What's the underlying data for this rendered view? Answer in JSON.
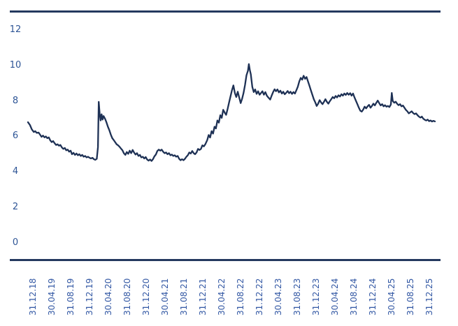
{
  "page": {
    "background": "#ffffff"
  },
  "chart_data": {
    "type": "line",
    "title": "",
    "xlabel": "",
    "ylabel": "",
    "legend": "none",
    "grid": false,
    "y_ticks": [
      0,
      2,
      4,
      6,
      8,
      10,
      12
    ],
    "ylim": [
      0,
      13
    ],
    "x_tick_labels": [
      "31.12.18",
      "30.04.19",
      "31.08.19",
      "31.12.19",
      "30.04.20",
      "31.08.20",
      "31.12.20",
      "30.04.21",
      "31.08.21",
      "31.12.21",
      "30.04.22",
      "31.08.22",
      "31.12.22",
      "30.04.23",
      "31.08.23",
      "31.12.23",
      "30.04.24",
      "31.08.24",
      "31.12.24",
      "30.04.25",
      "31.08.25",
      "31.12.25"
    ],
    "x_unit": "months_after_31.12.18",
    "x_range_months": [
      0,
      84
    ],
    "line_color": "#1E3155",
    "axis_label_color": "#2E5596",
    "border_color": "#24395F",
    "points": [
      [
        0,
        6.8
      ],
      [
        0.4,
        6.65
      ],
      [
        0.8,
        6.4
      ],
      [
        1.2,
        6.25
      ],
      [
        1.5,
        6.3
      ],
      [
        1.8,
        6.2
      ],
      [
        2.2,
        6.22
      ],
      [
        2.5,
        6.1
      ],
      [
        2.8,
        5.98
      ],
      [
        3.1,
        6.05
      ],
      [
        3.4,
        5.95
      ],
      [
        3.7,
        6.0
      ],
      [
        4.0,
        5.9
      ],
      [
        4.3,
        5.95
      ],
      [
        4.6,
        5.78
      ],
      [
        4.9,
        5.68
      ],
      [
        5.2,
        5.74
      ],
      [
        5.5,
        5.62
      ],
      [
        5.8,
        5.52
      ],
      [
        6.1,
        5.56
      ],
      [
        6.4,
        5.48
      ],
      [
        6.7,
        5.52
      ],
      [
        7.0,
        5.38
      ],
      [
        7.3,
        5.3
      ],
      [
        7.6,
        5.35
      ],
      [
        7.9,
        5.22
      ],
      [
        8.2,
        5.26
      ],
      [
        8.5,
        5.14
      ],
      [
        8.8,
        5.2
      ],
      [
        9.1,
        5.0
      ],
      [
        9.4,
        5.08
      ],
      [
        9.7,
        4.96
      ],
      [
        10.0,
        5.04
      ],
      [
        10.3,
        4.94
      ],
      [
        10.6,
        5.0
      ],
      [
        10.9,
        4.9
      ],
      [
        11.2,
        4.96
      ],
      [
        11.5,
        4.86
      ],
      [
        11.8,
        4.9
      ],
      [
        12.1,
        4.82
      ],
      [
        12.4,
        4.86
      ],
      [
        12.7,
        4.8
      ],
      [
        13.0,
        4.76
      ],
      [
        13.3,
        4.8
      ],
      [
        13.6,
        4.72
      ],
      [
        13.9,
        4.68
      ],
      [
        14.2,
        4.74
      ],
      [
        14.45,
        5.4
      ],
      [
        14.6,
        7.95
      ],
      [
        14.8,
        7.3
      ],
      [
        15.0,
        6.9
      ],
      [
        15.2,
        7.25
      ],
      [
        15.4,
        6.95
      ],
      [
        15.6,
        7.15
      ],
      [
        15.9,
        7.0
      ],
      [
        16.2,
        6.8
      ],
      [
        16.5,
        6.55
      ],
      [
        16.8,
        6.35
      ],
      [
        17.1,
        6.1
      ],
      [
        17.4,
        5.9
      ],
      [
        17.7,
        5.8
      ],
      [
        18.0,
        5.68
      ],
      [
        18.3,
        5.56
      ],
      [
        18.6,
        5.5
      ],
      [
        18.9,
        5.42
      ],
      [
        19.2,
        5.32
      ],
      [
        19.5,
        5.22
      ],
      [
        19.8,
        5.05
      ],
      [
        20.1,
        4.96
      ],
      [
        20.4,
        5.12
      ],
      [
        20.7,
        5.02
      ],
      [
        21.0,
        5.2
      ],
      [
        21.3,
        5.06
      ],
      [
        21.6,
        5.24
      ],
      [
        21.9,
        5.1
      ],
      [
        22.2,
        4.98
      ],
      [
        22.5,
        5.06
      ],
      [
        22.8,
        4.9
      ],
      [
        23.1,
        4.96
      ],
      [
        23.4,
        4.82
      ],
      [
        23.7,
        4.86
      ],
      [
        24.0,
        4.76
      ],
      [
        24.3,
        4.84
      ],
      [
        24.6,
        4.7
      ],
      [
        24.9,
        4.64
      ],
      [
        25.2,
        4.7
      ],
      [
        25.5,
        4.62
      ],
      [
        25.8,
        4.72
      ],
      [
        26.1,
        4.88
      ],
      [
        26.4,
        4.98
      ],
      [
        26.7,
        5.18
      ],
      [
        27.0,
        5.26
      ],
      [
        27.3,
        5.2
      ],
      [
        27.6,
        5.26
      ],
      [
        27.9,
        5.14
      ],
      [
        28.2,
        5.06
      ],
      [
        28.5,
        5.1
      ],
      [
        28.8,
        5.0
      ],
      [
        29.1,
        5.06
      ],
      [
        29.4,
        4.94
      ],
      [
        29.7,
        4.98
      ],
      [
        30.0,
        4.9
      ],
      [
        30.3,
        4.94
      ],
      [
        30.6,
        4.86
      ],
      [
        30.9,
        4.9
      ],
      [
        31.2,
        4.74
      ],
      [
        31.5,
        4.66
      ],
      [
        31.8,
        4.72
      ],
      [
        32.1,
        4.66
      ],
      [
        32.4,
        4.74
      ],
      [
        32.7,
        4.86
      ],
      [
        33.0,
        4.94
      ],
      [
        33.3,
        5.1
      ],
      [
        33.6,
        5.04
      ],
      [
        33.9,
        5.18
      ],
      [
        34.2,
        5.06
      ],
      [
        34.5,
        5.0
      ],
      [
        34.8,
        5.1
      ],
      [
        35.1,
        5.3
      ],
      [
        35.4,
        5.24
      ],
      [
        35.7,
        5.3
      ],
      [
        36.0,
        5.5
      ],
      [
        36.3,
        5.44
      ],
      [
        36.6,
        5.56
      ],
      [
        37.0,
        5.8
      ],
      [
        37.3,
        6.08
      ],
      [
        37.6,
        5.94
      ],
      [
        37.9,
        6.3
      ],
      [
        38.2,
        6.16
      ],
      [
        38.5,
        6.55
      ],
      [
        38.8,
        6.45
      ],
      [
        39.1,
        6.9
      ],
      [
        39.4,
        6.78
      ],
      [
        39.7,
        7.2
      ],
      [
        40.0,
        7.05
      ],
      [
        40.3,
        7.5
      ],
      [
        40.6,
        7.35
      ],
      [
        40.9,
        7.22
      ],
      [
        41.2,
        7.55
      ],
      [
        41.5,
        7.9
      ],
      [
        41.8,
        8.25
      ],
      [
        42.1,
        8.6
      ],
      [
        42.4,
        8.88
      ],
      [
        42.7,
        8.45
      ],
      [
        43.0,
        8.22
      ],
      [
        43.3,
        8.52
      ],
      [
        43.6,
        8.2
      ],
      [
        43.9,
        7.88
      ],
      [
        44.2,
        8.12
      ],
      [
        44.5,
        8.45
      ],
      [
        44.8,
        8.9
      ],
      [
        45.1,
        9.45
      ],
      [
        45.4,
        9.7
      ],
      [
        45.6,
        10.08
      ],
      [
        45.8,
        9.75
      ],
      [
        46.0,
        9.5
      ],
      [
        46.3,
        8.8
      ],
      [
        46.6,
        8.5
      ],
      [
        46.9,
        8.65
      ],
      [
        47.2,
        8.4
      ],
      [
        47.5,
        8.55
      ],
      [
        47.8,
        8.35
      ],
      [
        48.1,
        8.45
      ],
      [
        48.4,
        8.55
      ],
      [
        48.7,
        8.35
      ],
      [
        49.0,
        8.5
      ],
      [
        49.3,
        8.3
      ],
      [
        49.6,
        8.2
      ],
      [
        50.0,
        8.08
      ],
      [
        50.3,
        8.3
      ],
      [
        50.6,
        8.5
      ],
      [
        50.9,
        8.66
      ],
      [
        51.2,
        8.55
      ],
      [
        51.5,
        8.65
      ],
      [
        51.8,
        8.48
      ],
      [
        52.1,
        8.58
      ],
      [
        52.4,
        8.42
      ],
      [
        52.7,
        8.52
      ],
      [
        53.0,
        8.38
      ],
      [
        53.3,
        8.46
      ],
      [
        53.6,
        8.56
      ],
      [
        53.9,
        8.44
      ],
      [
        54.2,
        8.52
      ],
      [
        54.5,
        8.4
      ],
      [
        54.8,
        8.5
      ],
      [
        55.1,
        8.42
      ],
      [
        55.4,
        8.6
      ],
      [
        55.7,
        8.8
      ],
      [
        56.0,
        9.1
      ],
      [
        56.3,
        9.3
      ],
      [
        56.6,
        9.2
      ],
      [
        56.9,
        9.42
      ],
      [
        57.2,
        9.25
      ],
      [
        57.5,
        9.35
      ],
      [
        57.8,
        9.1
      ],
      [
        58.1,
        8.85
      ],
      [
        58.4,
        8.6
      ],
      [
        58.7,
        8.35
      ],
      [
        59.0,
        8.1
      ],
      [
        59.3,
        7.92
      ],
      [
        59.6,
        7.72
      ],
      [
        59.9,
        7.85
      ],
      [
        60.2,
        8.05
      ],
      [
        60.5,
        7.92
      ],
      [
        60.8,
        7.82
      ],
      [
        61.1,
        7.95
      ],
      [
        61.4,
        8.1
      ],
      [
        61.7,
        7.95
      ],
      [
        62.0,
        7.85
      ],
      [
        62.3,
        7.98
      ],
      [
        62.6,
        8.1
      ],
      [
        62.9,
        8.22
      ],
      [
        63.2,
        8.15
      ],
      [
        63.5,
        8.28
      ],
      [
        63.8,
        8.2
      ],
      [
        64.1,
        8.32
      ],
      [
        64.4,
        8.25
      ],
      [
        64.7,
        8.38
      ],
      [
        65.0,
        8.3
      ],
      [
        65.3,
        8.42
      ],
      [
        65.6,
        8.34
      ],
      [
        65.9,
        8.45
      ],
      [
        66.2,
        8.35
      ],
      [
        66.5,
        8.44
      ],
      [
        66.8,
        8.3
      ],
      [
        67.1,
        8.42
      ],
      [
        67.4,
        8.2
      ],
      [
        67.7,
        8.0
      ],
      [
        68.0,
        7.82
      ],
      [
        68.3,
        7.62
      ],
      [
        68.6,
        7.45
      ],
      [
        68.9,
        7.4
      ],
      [
        69.2,
        7.52
      ],
      [
        69.5,
        7.68
      ],
      [
        69.8,
        7.58
      ],
      [
        70.1,
        7.7
      ],
      [
        70.4,
        7.78
      ],
      [
        70.7,
        7.62
      ],
      [
        71.0,
        7.72
      ],
      [
        71.3,
        7.85
      ],
      [
        71.6,
        7.75
      ],
      [
        71.9,
        7.9
      ],
      [
        72.2,
        8.02
      ],
      [
        72.5,
        7.88
      ],
      [
        72.8,
        7.75
      ],
      [
        73.1,
        7.82
      ],
      [
        73.4,
        7.7
      ],
      [
        73.7,
        7.76
      ],
      [
        74.0,
        7.68
      ],
      [
        74.3,
        7.72
      ],
      [
        74.6,
        7.66
      ],
      [
        74.9,
        7.8
      ],
      [
        75.1,
        8.45
      ],
      [
        75.3,
        8.0
      ],
      [
        75.6,
        7.9
      ],
      [
        75.9,
        7.96
      ],
      [
        76.2,
        7.84
      ],
      [
        76.5,
        7.76
      ],
      [
        76.8,
        7.82
      ],
      [
        77.1,
        7.7
      ],
      [
        77.4,
        7.74
      ],
      [
        77.7,
        7.62
      ],
      [
        78.0,
        7.5
      ],
      [
        78.3,
        7.42
      ],
      [
        78.6,
        7.3
      ],
      [
        78.9,
        7.36
      ],
      [
        79.2,
        7.42
      ],
      [
        79.5,
        7.32
      ],
      [
        79.8,
        7.26
      ],
      [
        80.1,
        7.3
      ],
      [
        80.4,
        7.2
      ],
      [
        80.7,
        7.12
      ],
      [
        81.0,
        7.06
      ],
      [
        81.3,
        7.12
      ],
      [
        81.6,
        7.0
      ],
      [
        81.9,
        6.94
      ],
      [
        82.2,
        6.9
      ],
      [
        82.5,
        6.95
      ],
      [
        82.8,
        6.86
      ],
      [
        83.1,
        6.9
      ],
      [
        83.4,
        6.84
      ],
      [
        83.7,
        6.88
      ],
      [
        84.0,
        6.85
      ]
    ]
  }
}
